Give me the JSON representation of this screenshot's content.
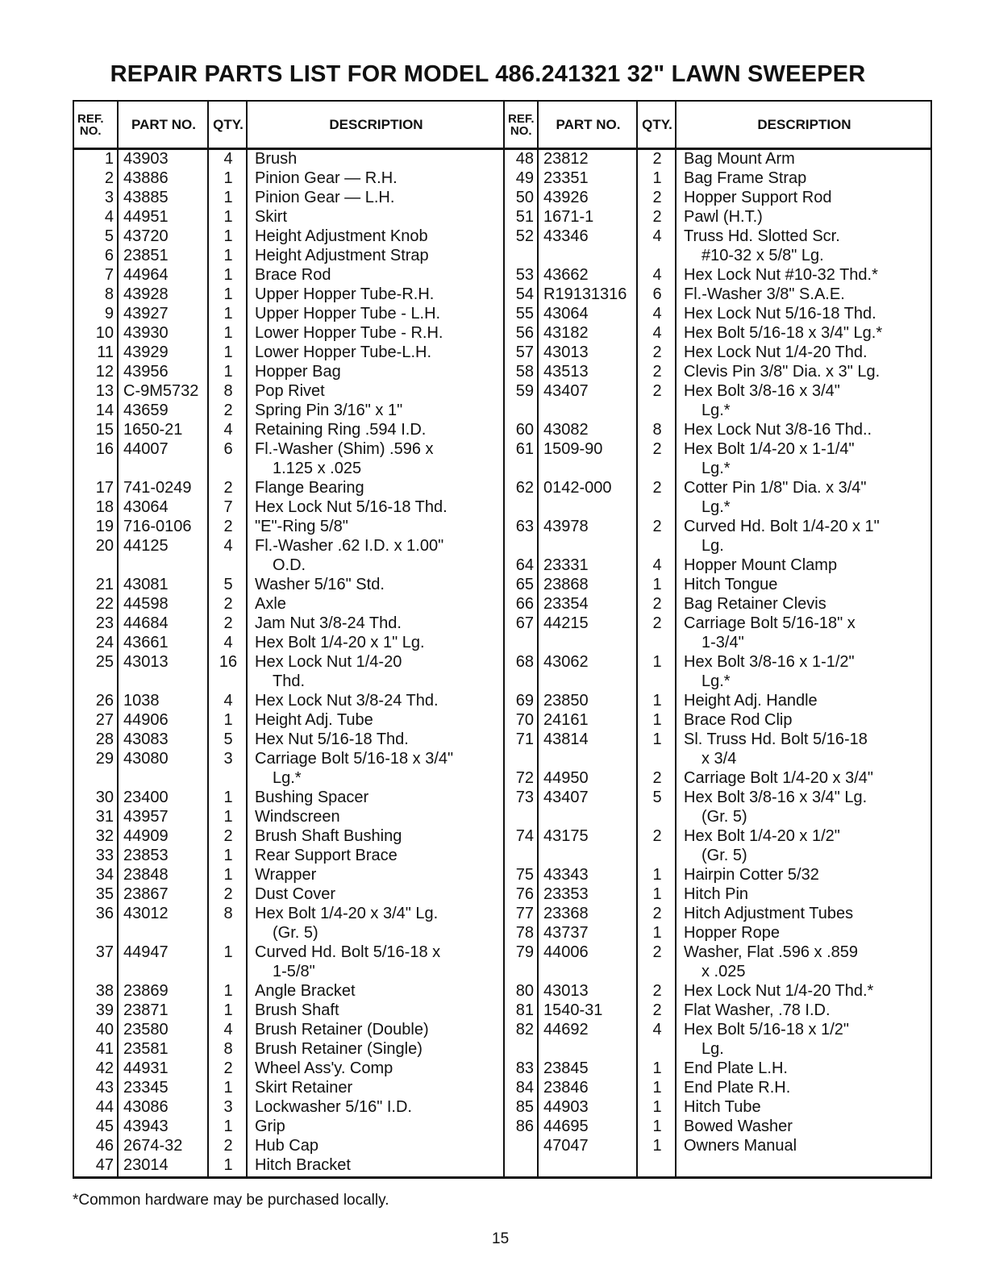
{
  "title": "REPAIR PARTS LIST FOR MODEL 486.241321 32\" LAWN SWEEPER",
  "headers": {
    "ref_line1": "REF.",
    "ref_line2": "NO.",
    "part": "PART NO.",
    "qty": "QTY.",
    "desc": "DESCRIPTION"
  },
  "left_rows": [
    {
      "ref": "1",
      "part": "43903",
      "qty": "4",
      "desc": [
        "Brush"
      ]
    },
    {
      "ref": "2",
      "part": "43886",
      "qty": "1",
      "desc": [
        "Pinion Gear — R.H."
      ]
    },
    {
      "ref": "3",
      "part": "43885",
      "qty": "1",
      "desc": [
        "Pinion Gear — L.H."
      ]
    },
    {
      "ref": "4",
      "part": "44951",
      "qty": "1",
      "desc": [
        "Skirt"
      ]
    },
    {
      "ref": "5",
      "part": "43720",
      "qty": "1",
      "desc": [
        "Height Adjustment Knob"
      ]
    },
    {
      "ref": "6",
      "part": "23851",
      "qty": "1",
      "desc": [
        "Height Adjustment Strap"
      ]
    },
    {
      "ref": "7",
      "part": "44964",
      "qty": "1",
      "desc": [
        "Brace Rod"
      ]
    },
    {
      "ref": "8",
      "part": "43928",
      "qty": "1",
      "desc": [
        "Upper Hopper Tube-R.H."
      ]
    },
    {
      "ref": "9",
      "part": "43927",
      "qty": "1",
      "desc": [
        "Upper Hopper Tube - L.H."
      ]
    },
    {
      "ref": "10",
      "part": "43930",
      "qty": "1",
      "desc": [
        "Lower Hopper Tube - R.H."
      ]
    },
    {
      "ref": "11",
      "part": "43929",
      "qty": "1",
      "desc": [
        "Lower Hopper Tube-L.H."
      ]
    },
    {
      "ref": "12",
      "part": "43956",
      "qty": "1",
      "desc": [
        "Hopper Bag"
      ]
    },
    {
      "ref": "13",
      "part": "C-9M5732",
      "qty": "8",
      "desc": [
        "Pop Rivet"
      ]
    },
    {
      "ref": "14",
      "part": "43659",
      "qty": "2",
      "desc": [
        "Spring Pin 3/16\" x 1\""
      ]
    },
    {
      "ref": "15",
      "part": "1650-21",
      "qty": "4",
      "desc": [
        "Retaining Ring .594 I.D."
      ]
    },
    {
      "ref": "16",
      "part": "44007",
      "qty": "6",
      "desc": [
        "Fl.-Washer (Shim) .596 x",
        "1.125 x .025"
      ]
    },
    {
      "ref": "17",
      "part": "741-0249",
      "qty": "2",
      "desc": [
        "Flange Bearing"
      ]
    },
    {
      "ref": "18",
      "part": "43064",
      "qty": "7",
      "desc": [
        "Hex Lock Nut 5/16-18 Thd."
      ]
    },
    {
      "ref": "19",
      "part": "716-0106",
      "qty": "2",
      "desc": [
        "\"E\"-Ring 5/8\""
      ]
    },
    {
      "ref": "20",
      "part": "44125",
      "qty": "4",
      "desc": [
        "Fl.-Washer .62 I.D. x 1.00\"",
        "O.D."
      ]
    },
    {
      "ref": "21",
      "part": "43081",
      "qty": "5",
      "desc": [
        "Washer 5/16\" Std."
      ]
    },
    {
      "ref": "22",
      "part": "44598",
      "qty": "2",
      "desc": [
        "Axle"
      ]
    },
    {
      "ref": "23",
      "part": "44684",
      "qty": "2",
      "desc": [
        "Jam Nut 3/8-24 Thd."
      ]
    },
    {
      "ref": "24",
      "part": "43661",
      "qty": "4",
      "desc": [
        "Hex Bolt 1/4-20 x 1\" Lg."
      ]
    },
    {
      "ref": "25",
      "part": "43013",
      "qty": "16",
      "desc": [
        "Hex Lock Nut 1/4-20",
        "Thd."
      ]
    },
    {
      "ref": "26",
      "part": "1038",
      "qty": "4",
      "desc": [
        "Hex Lock Nut 3/8-24 Thd."
      ]
    },
    {
      "ref": "27",
      "part": "44906",
      "qty": "1",
      "desc": [
        "Height Adj. Tube"
      ]
    },
    {
      "ref": "28",
      "part": "43083",
      "qty": "5",
      "desc": [
        "Hex Nut 5/16-18 Thd."
      ]
    },
    {
      "ref": "29",
      "part": "43080",
      "qty": "3",
      "desc": [
        "Carriage Bolt 5/16-18 x 3/4\"",
        "Lg.*"
      ]
    },
    {
      "ref": "30",
      "part": "23400",
      "qty": "1",
      "desc": [
        "Bushing Spacer"
      ]
    },
    {
      "ref": "31",
      "part": "43957",
      "qty": "1",
      "desc": [
        "Windscreen"
      ]
    },
    {
      "ref": "32",
      "part": "44909",
      "qty": "2",
      "desc": [
        "Brush Shaft Bushing"
      ]
    },
    {
      "ref": "33",
      "part": "23853",
      "qty": "1",
      "desc": [
        "Rear Support Brace"
      ]
    },
    {
      "ref": "34",
      "part": "23848",
      "qty": "1",
      "desc": [
        "Wrapper"
      ]
    },
    {
      "ref": "35",
      "part": "23867",
      "qty": "2",
      "desc": [
        "Dust Cover"
      ]
    },
    {
      "ref": "36",
      "part": "43012",
      "qty": "8",
      "desc": [
        "Hex Bolt 1/4-20 x 3/4\" Lg.",
        "(Gr. 5)"
      ]
    },
    {
      "ref": "37",
      "part": "44947",
      "qty": "1",
      "desc": [
        "Curved Hd. Bolt 5/16-18 x",
        "1-5/8\""
      ]
    },
    {
      "ref": "38",
      "part": "23869",
      "qty": "1",
      "desc": [
        "Angle Bracket"
      ]
    },
    {
      "ref": "39",
      "part": "23871",
      "qty": "1",
      "desc": [
        "Brush Shaft"
      ]
    },
    {
      "ref": "40",
      "part": "23580",
      "qty": "4",
      "desc": [
        "Brush Retainer (Double)"
      ]
    },
    {
      "ref": "41",
      "part": "23581",
      "qty": "8",
      "desc": [
        "Brush Retainer (Single)"
      ]
    },
    {
      "ref": "42",
      "part": "44931",
      "qty": "2",
      "desc": [
        "Wheel Ass'y. Comp"
      ]
    },
    {
      "ref": "43",
      "part": "23345",
      "qty": "1",
      "desc": [
        "Skirt Retainer"
      ]
    },
    {
      "ref": "44",
      "part": "43086",
      "qty": "3",
      "desc": [
        "Lockwasher 5/16\" I.D."
      ]
    },
    {
      "ref": "45",
      "part": "43943",
      "qty": "1",
      "desc": [
        "Grip"
      ]
    },
    {
      "ref": "46",
      "part": "2674-32",
      "qty": "2",
      "desc": [
        "Hub Cap"
      ]
    },
    {
      "ref": "47",
      "part": "23014",
      "qty": "1",
      "desc": [
        "Hitch Bracket"
      ]
    }
  ],
  "right_rows": [
    {
      "ref": "48",
      "part": "23812",
      "qty": "2",
      "desc": [
        "Bag Mount Arm"
      ]
    },
    {
      "ref": "49",
      "part": "23351",
      "qty": "1",
      "desc": [
        "Bag Frame Strap"
      ]
    },
    {
      "ref": "50",
      "part": "43926",
      "qty": "2",
      "desc": [
        "Hopper Support Rod"
      ]
    },
    {
      "ref": "51",
      "part": "1671-1",
      "qty": "2",
      "desc": [
        "Pawl (H.T.)"
      ]
    },
    {
      "ref": "52",
      "part": "43346",
      "qty": "4",
      "desc": [
        "Truss Hd. Slotted Scr.",
        "#10-32 x 5/8\" Lg."
      ]
    },
    {
      "ref": "53",
      "part": "43662",
      "qty": "4",
      "desc": [
        "Hex Lock Nut #10-32 Thd.*"
      ]
    },
    {
      "ref": "54",
      "part": "R19131316",
      "qty": "6",
      "desc": [
        "Fl.-Washer 3/8\" S.A.E."
      ]
    },
    {
      "ref": "55",
      "part": "43064",
      "qty": "4",
      "desc": [
        "Hex Lock Nut 5/16-18 Thd."
      ]
    },
    {
      "ref": "56",
      "part": "43182",
      "qty": "4",
      "desc": [
        "Hex Bolt 5/16-18 x 3/4\" Lg.*"
      ]
    },
    {
      "ref": "57",
      "part": "43013",
      "qty": "2",
      "desc": [
        "Hex Lock Nut 1/4-20 Thd."
      ]
    },
    {
      "ref": "58",
      "part": "43513",
      "qty": "2",
      "desc": [
        "Clevis Pin 3/8\" Dia. x 3\" Lg."
      ]
    },
    {
      "ref": "59",
      "part": "43407",
      "qty": "2",
      "desc": [
        "Hex Bolt 3/8-16 x 3/4\"",
        "Lg.*"
      ]
    },
    {
      "ref": "60",
      "part": "43082",
      "qty": "8",
      "desc": [
        "Hex Lock Nut 3/8-16 Thd.."
      ]
    },
    {
      "ref": "61",
      "part": "1509-90",
      "qty": "2",
      "desc": [
        "Hex Bolt 1/4-20 x 1-1/4\"",
        "Lg.*"
      ]
    },
    {
      "ref": "62",
      "part": "0142-000",
      "qty": "2",
      "desc": [
        "Cotter Pin 1/8\" Dia. x 3/4\"",
        "Lg.*"
      ]
    },
    {
      "ref": "63",
      "part": "43978",
      "qty": "2",
      "desc": [
        "Curved Hd. Bolt 1/4-20 x 1\"",
        "Lg."
      ]
    },
    {
      "ref": "64",
      "part": "23331",
      "qty": "4",
      "desc": [
        "Hopper Mount Clamp"
      ]
    },
    {
      "ref": "65",
      "part": "23868",
      "qty": "1",
      "desc": [
        "Hitch Tongue"
      ]
    },
    {
      "ref": "66",
      "part": "23354",
      "qty": "2",
      "desc": [
        "Bag Retainer Clevis"
      ]
    },
    {
      "ref": "67",
      "part": "44215",
      "qty": "2",
      "desc": [
        "Carriage Bolt 5/16-18\" x",
        "1-3/4\""
      ]
    },
    {
      "ref": "68",
      "part": "43062",
      "qty": "1",
      "desc": [
        "Hex Bolt 3/8-16 x 1-1/2\"",
        "Lg.*"
      ]
    },
    {
      "ref": "69",
      "part": "23850",
      "qty": "1",
      "desc": [
        "Height Adj. Handle"
      ]
    },
    {
      "ref": "70",
      "part": "24161",
      "qty": "1",
      "desc": [
        "Brace Rod Clip"
      ]
    },
    {
      "ref": "71",
      "part": "43814",
      "qty": "1",
      "desc": [
        "Sl. Truss Hd. Bolt 5/16-18",
        "x 3/4"
      ]
    },
    {
      "ref": "72",
      "part": "44950",
      "qty": "2",
      "desc": [
        "Carriage Bolt 1/4-20 x 3/4\""
      ]
    },
    {
      "ref": "73",
      "part": "43407",
      "qty": "5",
      "desc": [
        "Hex Bolt 3/8-16 x 3/4\" Lg.",
        "(Gr. 5)"
      ]
    },
    {
      "ref": "74",
      "part": "43175",
      "qty": "2",
      "desc": [
        "Hex Bolt 1/4-20 x 1/2\"",
        "(Gr. 5)"
      ]
    },
    {
      "ref": "75",
      "part": "43343",
      "qty": "1",
      "desc": [
        "Hairpin Cotter 5/32"
      ]
    },
    {
      "ref": "76",
      "part": "23353",
      "qty": "1",
      "desc": [
        "Hitch Pin"
      ]
    },
    {
      "ref": "77",
      "part": "23368",
      "qty": "2",
      "desc": [
        "Hitch Adjustment Tubes"
      ]
    },
    {
      "ref": "78",
      "part": "43737",
      "qty": "1",
      "desc": [
        "Hopper Rope"
      ]
    },
    {
      "ref": "79",
      "part": "44006",
      "qty": "2",
      "desc": [
        "Washer, Flat .596 x .859",
        "x .025"
      ]
    },
    {
      "ref": "80",
      "part": "43013",
      "qty": "2",
      "desc": [
        "Hex Lock Nut 1/4-20 Thd.*"
      ]
    },
    {
      "ref": "81",
      "part": "1540-31",
      "qty": "2",
      "desc": [
        "Flat Washer, .78 I.D."
      ]
    },
    {
      "ref": "82",
      "part": "44692",
      "qty": "4",
      "desc": [
        "Hex Bolt 5/16-18 x 1/2\"",
        "Lg."
      ]
    },
    {
      "ref": "83",
      "part": "23845",
      "qty": "1",
      "desc": [
        "End Plate L.H."
      ]
    },
    {
      "ref": "84",
      "part": "23846",
      "qty": "1",
      "desc": [
        "End Plate R.H."
      ]
    },
    {
      "ref": "85",
      "part": "44903",
      "qty": "1",
      "desc": [
        "Hitch Tube"
      ]
    },
    {
      "ref": "86",
      "part": "44695",
      "qty": "1",
      "desc": [
        "Bowed Washer"
      ]
    },
    {
      "ref": "",
      "part": "47047",
      "qty": "1",
      "desc": [
        "Owners Manual"
      ]
    }
  ],
  "footnote": "*Common hardware may be purchased locally.",
  "page_number": "15"
}
